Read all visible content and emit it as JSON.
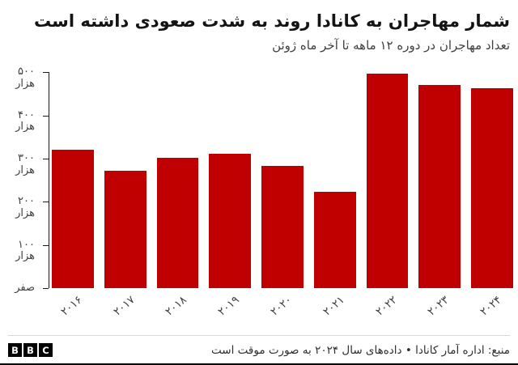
{
  "chart_data": {
    "type": "bar",
    "title": "شمار مهاجران به کانادا روند به شدت صعودی داشته است",
    "subtitle": "تعداد مهاجران در دوره ۱۲ ماهه تا آخر ماه ژوئن",
    "categories": [
      "۲۰۱۶",
      "۲۰۱۷",
      "۲۰۱۸",
      "۲۰۱۹",
      "۲۰۲۰",
      "۲۰۲۱",
      "۲۰۲۲",
      "۲۰۲۳",
      "۲۰۲۴"
    ],
    "values": [
      320,
      272,
      302,
      312,
      284,
      223,
      497,
      470,
      464
    ],
    "values_unit_label": "هزار",
    "ylim": [
      0,
      500
    ],
    "yticks": [
      {
        "value": 500,
        "line1": "۵۰۰",
        "line2": "هزار"
      },
      {
        "value": 400,
        "line1": "۴۰۰",
        "line2": "هزار"
      },
      {
        "value": 300,
        "line1": "۳۰۰",
        "line2": "هزار"
      },
      {
        "value": 200,
        "line1": "۲۰۰",
        "line2": "هزار"
      },
      {
        "value": 100,
        "line1": "۱۰۰",
        "line2": "هزار"
      },
      {
        "value": 0,
        "line1": "صفر",
        "line2": ""
      }
    ],
    "bar_color": "#c00000",
    "grid": false,
    "legend": false,
    "x_labels_rotated": true
  },
  "footer": {
    "logo_letters": [
      "B",
      "B",
      "C"
    ],
    "source": "منبع: اداره آمار کانادا • داده‌های سال ۲۰۲۴ به صورت موقت است"
  },
  "colors": {
    "bar": "#c00000",
    "title_text": "#141414",
    "axis_text": "#404040",
    "divider": "#d9d9d9",
    "logo_bg": "#000000"
  }
}
